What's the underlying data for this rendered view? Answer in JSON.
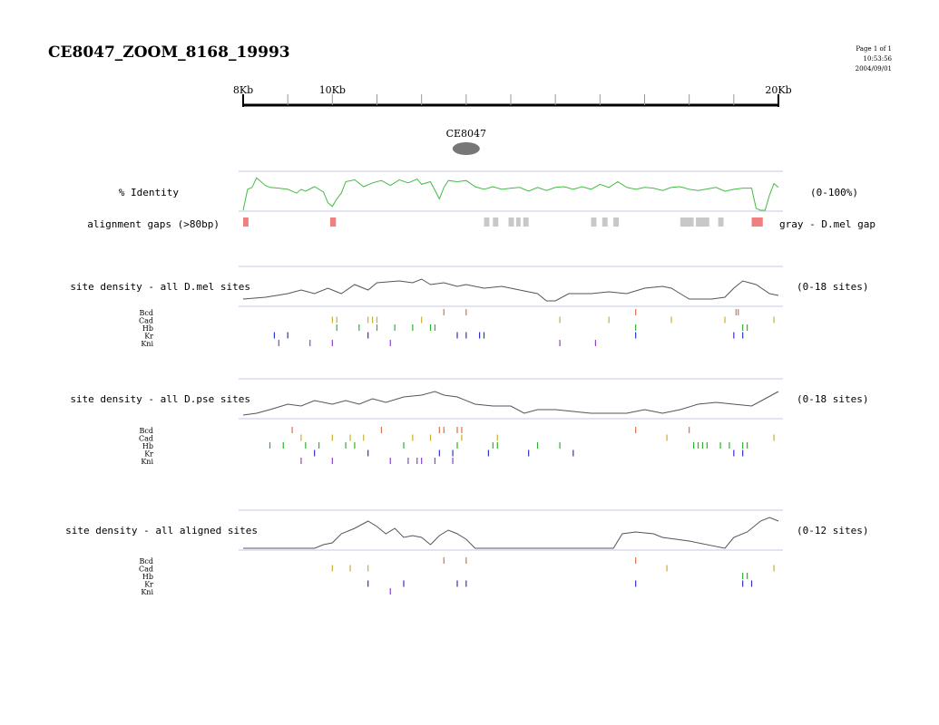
{
  "header": {
    "title": "CE8047_ZOOM_8168_19993",
    "page": "Page 1 of 1",
    "time": "10:53:56",
    "date": "2004/09/01"
  },
  "axis": {
    "start_kb": 8,
    "end_kb": 20,
    "labels": [
      {
        "kb": 8,
        "text": "8Kb"
      },
      {
        "kb": 10,
        "text": "10Kb"
      },
      {
        "kb": 20,
        "text": "20Kb"
      }
    ],
    "ticks_kb": [
      8,
      9,
      10,
      11,
      12,
      13,
      14,
      15,
      16,
      17,
      18,
      19,
      20
    ]
  },
  "element": {
    "label": "CE8047",
    "center_kb": 13.0,
    "color": "#777777"
  },
  "identity": {
    "label": "% Identity",
    "range_label": "(0-100%)",
    "color": "#44bb44",
    "profile": [
      [
        8.0,
        0
      ],
      [
        8.1,
        55
      ],
      [
        8.2,
        60
      ],
      [
        8.3,
        85
      ],
      [
        8.4,
        75
      ],
      [
        8.5,
        65
      ],
      [
        8.6,
        60
      ],
      [
        8.8,
        58
      ],
      [
        9.0,
        55
      ],
      [
        9.2,
        45
      ],
      [
        9.3,
        55
      ],
      [
        9.4,
        50
      ],
      [
        9.6,
        62
      ],
      [
        9.8,
        48
      ],
      [
        9.9,
        20
      ],
      [
        10.0,
        10
      ],
      [
        10.1,
        30
      ],
      [
        10.2,
        45
      ],
      [
        10.3,
        75
      ],
      [
        10.5,
        80
      ],
      [
        10.7,
        62
      ],
      [
        10.9,
        72
      ],
      [
        11.1,
        78
      ],
      [
        11.3,
        65
      ],
      [
        11.5,
        80
      ],
      [
        11.7,
        72
      ],
      [
        11.9,
        82
      ],
      [
        12.0,
        68
      ],
      [
        12.2,
        75
      ],
      [
        12.4,
        30
      ],
      [
        12.5,
        60
      ],
      [
        12.6,
        78
      ],
      [
        12.8,
        75
      ],
      [
        13.0,
        78
      ],
      [
        13.2,
        62
      ],
      [
        13.4,
        55
      ],
      [
        13.6,
        62
      ],
      [
        13.8,
        55
      ],
      [
        14.0,
        58
      ],
      [
        14.2,
        60
      ],
      [
        14.4,
        50
      ],
      [
        14.6,
        60
      ],
      [
        14.8,
        52
      ],
      [
        15.0,
        60
      ],
      [
        15.2,
        62
      ],
      [
        15.4,
        55
      ],
      [
        15.6,
        62
      ],
      [
        15.8,
        55
      ],
      [
        16.0,
        68
      ],
      [
        16.2,
        60
      ],
      [
        16.4,
        75
      ],
      [
        16.6,
        60
      ],
      [
        16.8,
        55
      ],
      [
        17.0,
        60
      ],
      [
        17.2,
        58
      ],
      [
        17.4,
        52
      ],
      [
        17.6,
        60
      ],
      [
        17.8,
        62
      ],
      [
        18.0,
        55
      ],
      [
        18.2,
        52
      ],
      [
        18.4,
        56
      ],
      [
        18.6,
        60
      ],
      [
        18.8,
        50
      ],
      [
        19.0,
        55
      ],
      [
        19.2,
        58
      ],
      [
        19.4,
        58
      ],
      [
        19.5,
        5
      ],
      [
        19.6,
        0
      ],
      [
        19.7,
        0
      ],
      [
        19.8,
        40
      ],
      [
        19.9,
        70
      ],
      [
        20.0,
        60
      ]
    ]
  },
  "gaps": {
    "label": "alignment gaps (>80bp)",
    "legend": "gray - D.mel gap",
    "pink_color": "#f08080",
    "gray_color": "#c8c8c8",
    "items": [
      {
        "start_kb": 8.0,
        "end_kb": 8.12,
        "kind": "pink"
      },
      {
        "start_kb": 9.95,
        "end_kb": 10.08,
        "kind": "pink"
      },
      {
        "start_kb": 13.4,
        "end_kb": 13.52,
        "kind": "gray"
      },
      {
        "start_kb": 13.6,
        "end_kb": 13.72,
        "kind": "gray"
      },
      {
        "start_kb": 13.95,
        "end_kb": 14.07,
        "kind": "gray"
      },
      {
        "start_kb": 14.12,
        "end_kb": 14.22,
        "kind": "gray"
      },
      {
        "start_kb": 14.28,
        "end_kb": 14.4,
        "kind": "gray"
      },
      {
        "start_kb": 15.8,
        "end_kb": 15.92,
        "kind": "gray"
      },
      {
        "start_kb": 16.05,
        "end_kb": 16.17,
        "kind": "gray"
      },
      {
        "start_kb": 16.3,
        "end_kb": 16.42,
        "kind": "gray"
      },
      {
        "start_kb": 17.8,
        "end_kb": 18.1,
        "kind": "gray"
      },
      {
        "start_kb": 18.15,
        "end_kb": 18.45,
        "kind": "gray"
      },
      {
        "start_kb": 18.65,
        "end_kb": 18.77,
        "kind": "gray"
      },
      {
        "start_kb": 19.4,
        "end_kb": 19.65,
        "kind": "pink"
      }
    ]
  },
  "factor_colors": {
    "Bcd": "#e07040",
    "Cad": "#c8b030",
    "Hb": "#30b030",
    "Kr": "#3030cc",
    "Kni": "#9040d0"
  },
  "panels": [
    {
      "id": "dmel",
      "label": "site density - all D.mel sites",
      "range_label": "(0-18 sites)",
      "density": [
        [
          8.0,
          0.15
        ],
        [
          8.5,
          0.2
        ],
        [
          9.0,
          0.3
        ],
        [
          9.3,
          0.4
        ],
        [
          9.6,
          0.3
        ],
        [
          9.9,
          0.45
        ],
        [
          10.2,
          0.3
        ],
        [
          10.5,
          0.55
        ],
        [
          10.8,
          0.4
        ],
        [
          11.0,
          0.6
        ],
        [
          11.5,
          0.65
        ],
        [
          11.8,
          0.6
        ],
        [
          12.0,
          0.7
        ],
        [
          12.2,
          0.55
        ],
        [
          12.5,
          0.6
        ],
        [
          12.8,
          0.5
        ],
        [
          13.0,
          0.55
        ],
        [
          13.4,
          0.45
        ],
        [
          13.8,
          0.5
        ],
        [
          14.2,
          0.4
        ],
        [
          14.6,
          0.3
        ],
        [
          14.8,
          0.1
        ],
        [
          15.0,
          0.1
        ],
        [
          15.3,
          0.3
        ],
        [
          15.8,
          0.3
        ],
        [
          16.2,
          0.35
        ],
        [
          16.6,
          0.3
        ],
        [
          17.0,
          0.45
        ],
        [
          17.4,
          0.5
        ],
        [
          17.6,
          0.45
        ],
        [
          17.8,
          0.3
        ],
        [
          18.0,
          0.15
        ],
        [
          18.5,
          0.15
        ],
        [
          18.8,
          0.2
        ],
        [
          19.0,
          0.45
        ],
        [
          19.2,
          0.65
        ],
        [
          19.5,
          0.55
        ],
        [
          19.8,
          0.3
        ],
        [
          20.0,
          0.25
        ]
      ],
      "sites": {
        "Bcd": [
          12.5,
          13.0,
          16.8,
          19.05,
          19.1
        ],
        "Cad": [
          10.0,
          10.1,
          10.8,
          10.9,
          11.0,
          12.0,
          15.1,
          16.2,
          17.6,
          18.8,
          19.9
        ],
        "Hb": [
          10.1,
          10.6,
          11.0,
          11.4,
          11.8,
          12.2,
          12.3,
          16.8,
          19.2,
          19.3
        ],
        "Kr": [
          8.7,
          9.0,
          10.8,
          12.8,
          13.0,
          13.3,
          13.4,
          16.8,
          19.0,
          19.2
        ],
        "Kni": [
          8.8,
          9.5,
          10.0,
          11.3,
          15.1,
          15.9
        ]
      }
    },
    {
      "id": "dpse",
      "label": "site density - all D.pse sites",
      "range_label": "(0-18 sites)",
      "density": [
        [
          8.0,
          0.05
        ],
        [
          8.3,
          0.1
        ],
        [
          8.6,
          0.2
        ],
        [
          9.0,
          0.35
        ],
        [
          9.3,
          0.3
        ],
        [
          9.6,
          0.45
        ],
        [
          10.0,
          0.35
        ],
        [
          10.3,
          0.45
        ],
        [
          10.6,
          0.35
        ],
        [
          10.9,
          0.5
        ],
        [
          11.2,
          0.4
        ],
        [
          11.6,
          0.55
        ],
        [
          12.0,
          0.6
        ],
        [
          12.3,
          0.7
        ],
        [
          12.5,
          0.6
        ],
        [
          12.8,
          0.55
        ],
        [
          13.2,
          0.35
        ],
        [
          13.6,
          0.3
        ],
        [
          14.0,
          0.3
        ],
        [
          14.3,
          0.1
        ],
        [
          14.6,
          0.2
        ],
        [
          15.0,
          0.2
        ],
        [
          15.4,
          0.15
        ],
        [
          15.8,
          0.1
        ],
        [
          16.2,
          0.1
        ],
        [
          16.6,
          0.1
        ],
        [
          17.0,
          0.2
        ],
        [
          17.4,
          0.1
        ],
        [
          17.8,
          0.2
        ],
        [
          18.2,
          0.35
        ],
        [
          18.6,
          0.4
        ],
        [
          19.0,
          0.35
        ],
        [
          19.4,
          0.3
        ],
        [
          19.7,
          0.5
        ],
        [
          20.0,
          0.7
        ]
      ],
      "sites": {
        "Bcd": [
          9.1,
          11.1,
          12.4,
          12.5,
          12.8,
          12.9,
          16.8,
          18.0
        ],
        "Cad": [
          9.3,
          10.0,
          10.4,
          10.7,
          11.8,
          12.2,
          12.9,
          13.7,
          17.5,
          19.9
        ],
        "Hb": [
          8.6,
          8.9,
          9.4,
          9.7,
          10.3,
          10.5,
          11.6,
          12.8,
          13.6,
          13.7,
          14.6,
          15.1,
          18.1,
          18.2,
          18.3,
          18.4,
          18.7,
          18.9,
          19.2,
          19.3
        ],
        "Kr": [
          9.6,
          10.8,
          12.4,
          12.7,
          13.5,
          14.4,
          15.4,
          19.0,
          19.2
        ],
        "Kni": [
          9.3,
          10.0,
          11.3,
          11.7,
          11.9,
          12.0,
          12.3,
          12.7
        ]
      }
    },
    {
      "id": "aligned",
      "label": "site density - all aligned sites",
      "range_label": "(0-12 sites)",
      "density": [
        [
          8.0,
          0.0
        ],
        [
          9.6,
          0.0
        ],
        [
          9.8,
          0.1
        ],
        [
          10.0,
          0.15
        ],
        [
          10.2,
          0.4
        ],
        [
          10.5,
          0.55
        ],
        [
          10.8,
          0.75
        ],
        [
          11.0,
          0.6
        ],
        [
          11.2,
          0.4
        ],
        [
          11.4,
          0.55
        ],
        [
          11.6,
          0.3
        ],
        [
          11.8,
          0.35
        ],
        [
          12.0,
          0.3
        ],
        [
          12.2,
          0.1
        ],
        [
          12.4,
          0.35
        ],
        [
          12.6,
          0.5
        ],
        [
          12.8,
          0.4
        ],
        [
          13.0,
          0.25
        ],
        [
          13.2,
          0.0
        ],
        [
          16.3,
          0.0
        ],
        [
          16.5,
          0.4
        ],
        [
          16.8,
          0.45
        ],
        [
          17.2,
          0.4
        ],
        [
          17.4,
          0.3
        ],
        [
          18.0,
          0.2
        ],
        [
          18.8,
          0.0
        ],
        [
          19.0,
          0.3
        ],
        [
          19.3,
          0.45
        ],
        [
          19.6,
          0.75
        ],
        [
          19.8,
          0.85
        ],
        [
          20.0,
          0.75
        ]
      ],
      "sites": {
        "Bcd": [
          12.5,
          13.0,
          16.8
        ],
        "Cad": [
          10.0,
          10.4,
          10.8,
          17.5,
          19.9
        ],
        "Hb": [
          19.2,
          19.3
        ],
        "Kr": [
          10.8,
          11.6,
          12.8,
          13.0,
          16.8,
          19.2,
          19.4
        ],
        "Kni": [
          11.3
        ]
      }
    }
  ]
}
